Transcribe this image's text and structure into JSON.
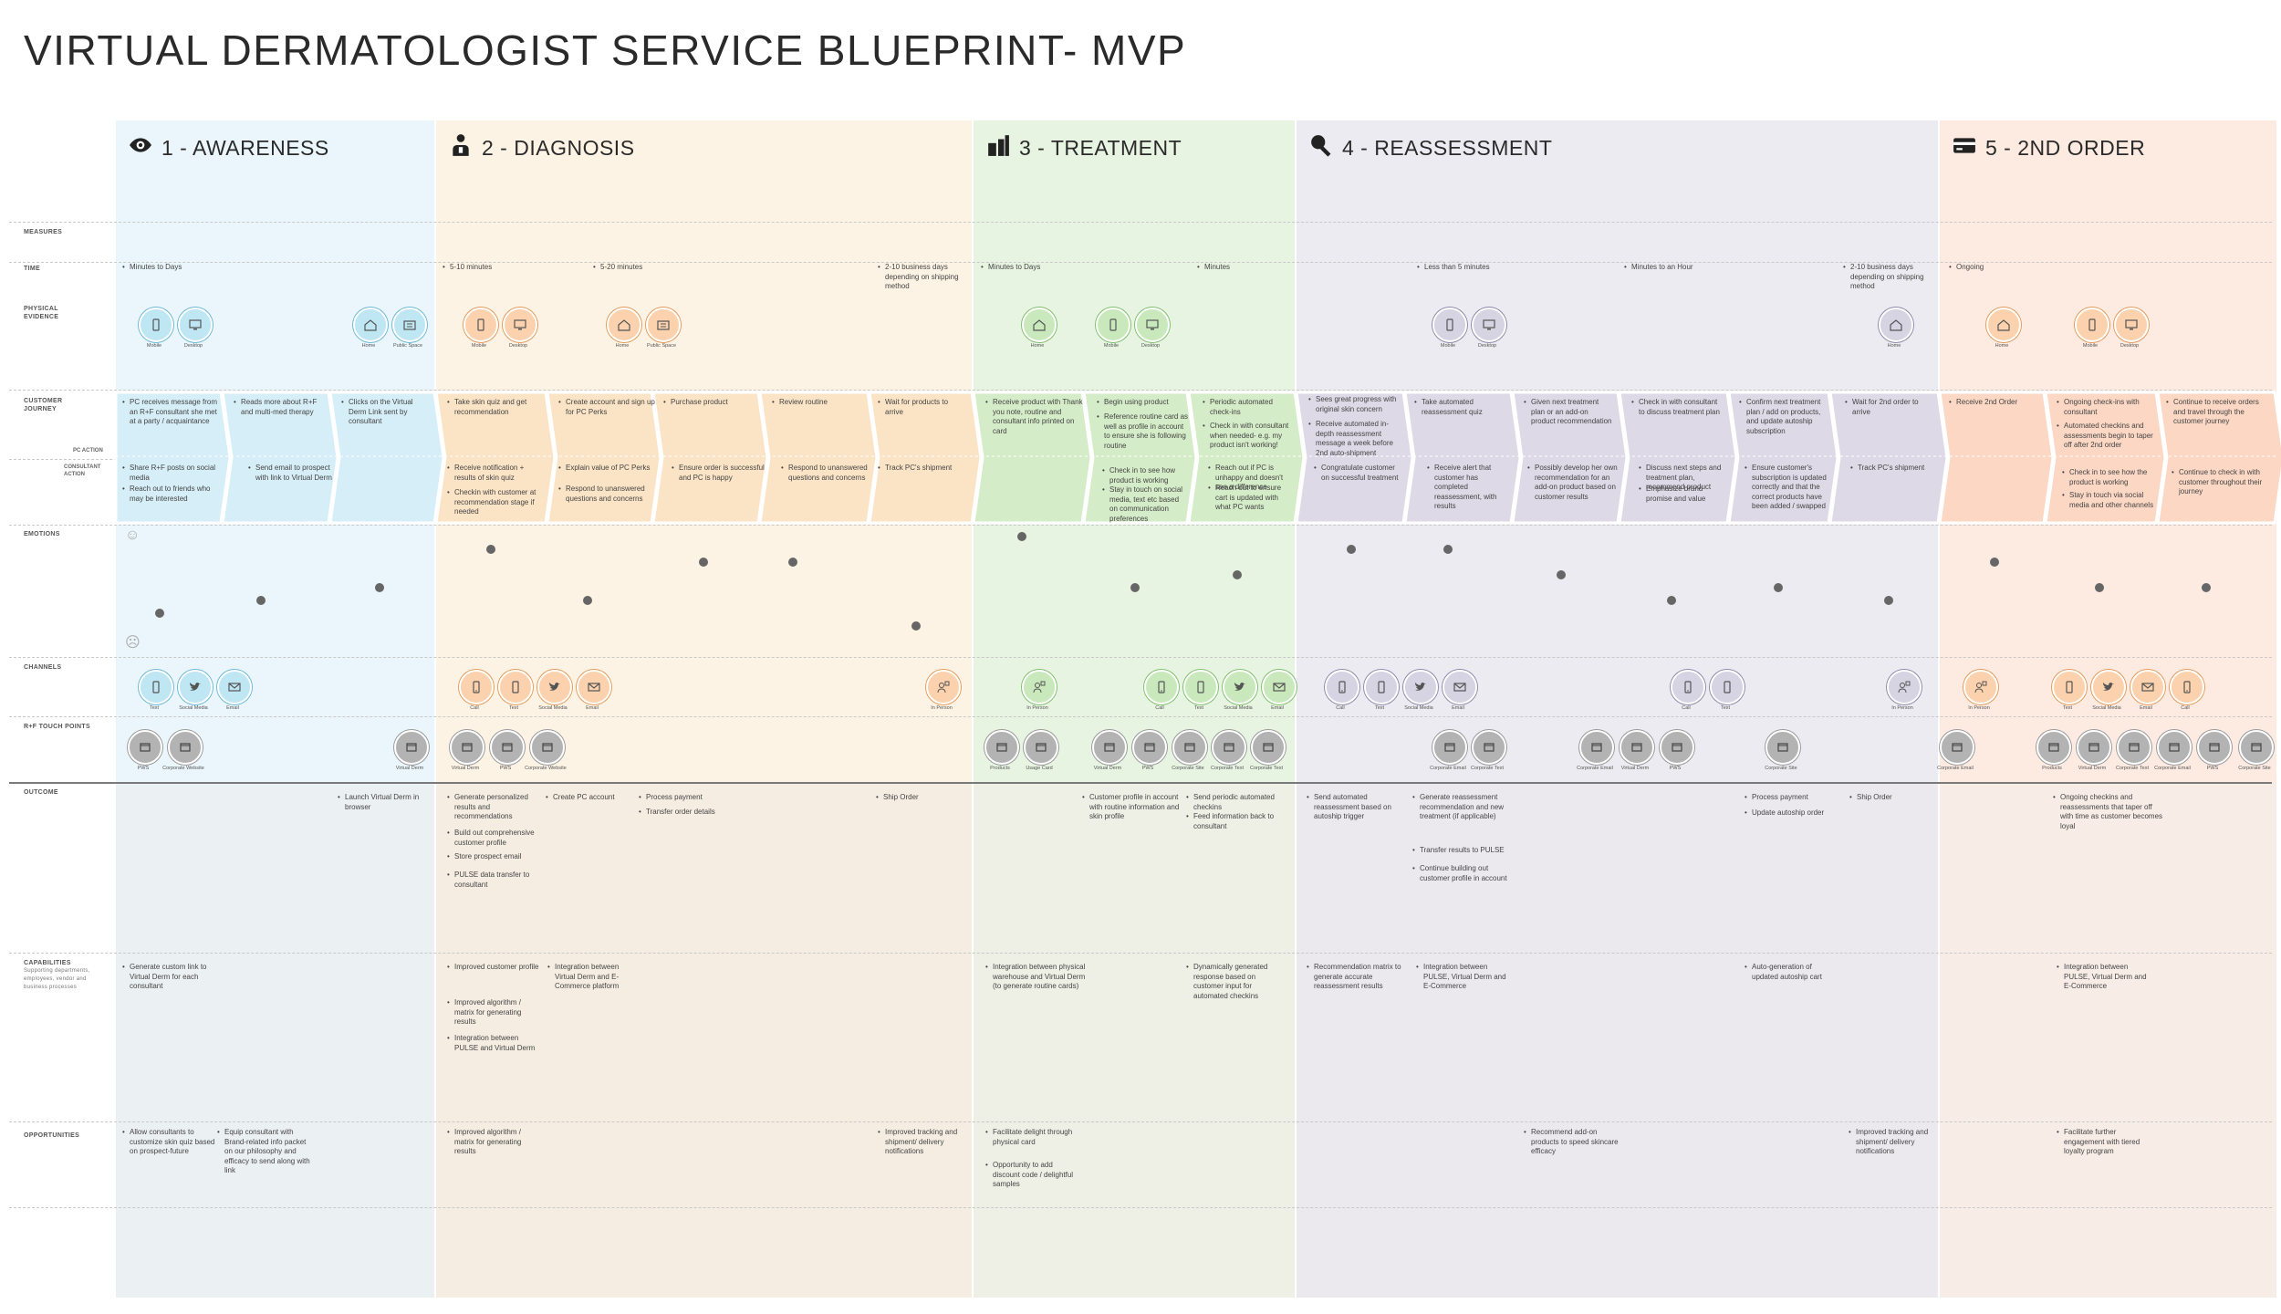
{
  "title": "VIRTUAL DERMATOLOGIST SERVICE BLUEPRINT- MVP",
  "colors": {
    "awareness": "#eaf6fb",
    "diagnosis": "#fdf3e4",
    "treatment": "#e8f4e2",
    "reassessment": "#ecebf1",
    "second_order": "#fdebe2"
  },
  "phases": [
    {
      "label": "1 - AWARENESS",
      "icon": "eye-icon"
    },
    {
      "label": "2 - DIAGNOSIS",
      "icon": "person-icon"
    },
    {
      "label": "3 - TREATMENT",
      "icon": "product-icon"
    },
    {
      "label": "4 - REASSESSMENT",
      "icon": "magnifier-icon"
    },
    {
      "label": "5 - 2ND ORDER",
      "icon": "card-icon"
    }
  ],
  "rows": {
    "measures": "MEASURES",
    "time": "TIME",
    "physical": "PHYSICAL EVIDENCE",
    "journey": "CUSTOMER JOURNEY",
    "pc_action": "PC ACTION",
    "consultant_action": "CONSULTANT ACTION",
    "emotions": "EMOTIONS",
    "channels": "CHANNELS",
    "touch": "R+F TOUCH POINTS",
    "outcome": "OUTCOME",
    "capabilities": "CAPABILITIES",
    "capabilities_sub": "Supporting departments, employees, vendor and business processes",
    "opportunities": "OPPORTUNITIES"
  },
  "times": [
    "Minutes to Days",
    "5-10 minutes",
    "5-20 minutes",
    "2-10 business days depending on shipping method",
    "Minutes to Days",
    "Minutes",
    "Less than 5 minutes",
    "Minutes to an Hour",
    "2-10 business days depending on shipping method",
    "Ongoing"
  ],
  "physical_labels": [
    "Mobile",
    "Desktop",
    "Home",
    "Public Space",
    "Mobile",
    "Desktop",
    "Home",
    "Public Space",
    "Home",
    "Mobile",
    "Desktop",
    "Mobile",
    "Desktop",
    "Home",
    "Home",
    "Mobile",
    "Desktop"
  ],
  "journey_pc": [
    "PC receives message from an R+F consultant she met at a party / acquaintance",
    "Reads more about R+F and multi-med therapy",
    "Clicks on the Virtual Derm Link sent by consultant",
    "Take skin quiz and get recommendation",
    "Create account and sign up for PC Perks",
    "Purchase product",
    "Review routine",
    "Wait for products to arrive",
    "Receive product with Thank you note, routine and consultant info printed on card",
    "Begin using product",
    "Reference routine card as well as profile in account to ensure she is following routine",
    "Periodic automated check-ins",
    "Check in with consultant when needed- e.g. my product isn't working!",
    "Sees great progress with original skin concern",
    "Receive automated in-depth reassessment message a week before 2nd auto-shipment",
    "Take automated reassessment quiz",
    "Given next treatment plan or an add-on product recommendation",
    "Check in with consultant to discuss treatment plan",
    "Confirm next treatment plan / add on products, and update autoship subscription",
    "Wait for 2nd order to arrive",
    "Receive 2nd Order",
    "Ongoing check-ins with consultant",
    "Automated checkins and assessments begin to taper off after 2nd order",
    "Continue to receive orders and travel through the customer journey"
  ],
  "journey_consultant": [
    "Share R+F posts on social media",
    "Reach out to friends who may be interested",
    "Send email to prospect with link to Virtual Derm",
    "Receive notification + results of skin quiz",
    "Checkin with customer at recommendation stage if needed",
    "Explain value of PC Perks",
    "Respond to unanswered questions and concerns",
    "Ensure order is successful and PC is happy",
    "Respond to unanswered questions and concerns",
    "Track PC's shipment",
    "Check in to see how product is working",
    "Stay in touch on social media, text etc based on communication preferences",
    "Reach out if PC is unhappy and doesn't see a difference",
    "Reach out to ensure cart is updated with what PC wants",
    "Congratulate customer on successful treatment",
    "Receive alert that customer has completed reassessment, with results",
    "Possibly develop her own recommendation for an add-on product based on customer results",
    "Discuss next steps and treatment plan, recommend product",
    "Emphasize brand promise and value",
    "Ensure customer's subscription is updated correctly and that the correct products have been added / swapped",
    "Track PC's shipment",
    "Check in to see how the product is working",
    "Stay in touch via social media and other channels",
    "Continue to check in with customer throughout their journey"
  ],
  "emotion_values": [
    2,
    3,
    6,
    7,
    3,
    5,
    5,
    1,
    8,
    6,
    3,
    7,
    7,
    5,
    3,
    4,
    3,
    6,
    5
  ],
  "channel_labels": [
    "Text",
    "Social Media",
    "Email",
    "Call",
    "Text",
    "Social Media",
    "Email",
    "In Person",
    "In Person",
    "Call",
    "Text",
    "Social Media",
    "Email",
    "Call",
    "Text",
    "Social Media",
    "Email",
    "Call",
    "Text",
    "In Person",
    "In Person",
    "Text",
    "Social Media",
    "Email",
    "Call"
  ],
  "touch_labels": [
    "PWS",
    "Corporate Website",
    "Virtual Derm",
    "Virtual Derm",
    "PWS",
    "Corporate Website",
    "Products",
    "Usage Card",
    "Virtual Derm",
    "PWS",
    "Corporate Site",
    "Corporate Text",
    "Corporate Text",
    "Corporate Email",
    "Corporate Text",
    "Corporate Email",
    "Virtual Derm",
    "PWS",
    "Corporate Site",
    "Corporate Email",
    "Products",
    "Virtual Derm",
    "Corporate Text",
    "Corporate Email",
    "PWS",
    "Corporate Site"
  ],
  "outcome": [
    "Launch Virtual Derm in browser",
    "Generate personalized results and recommendations",
    "Build out comprehensive customer profile",
    "Store prospect email",
    "PULSE data transfer to consultant",
    "Create PC account",
    "Process payment",
    "Transfer order details",
    "Ship Order",
    "Customer profile in account with routine information and skin profile",
    "Send periodic automated checkins",
    "Feed information back to consultant",
    "Send automated reassessment based on autoship trigger",
    "Generate reassessment recommendation and new treatment (if applicable)",
    "Transfer results to PULSE",
    "Continue building out customer profile in account",
    "Process payment",
    "Update autoship order",
    "Ship Order",
    "Ongoing checkins and reassessments that taper off with time as customer becomes loyal"
  ],
  "capabilities": [
    "Generate custom link to Virtual Derm for each consultant",
    "Improved customer profile",
    "Improved algorithm / matrix for generating results",
    "Integration between PULSE and Virtual Derm",
    "Integration between Virtual Derm and E-Commerce platform",
    "Integration between physical warehouse and Virtual Derm (to generate routine cards)",
    "Dynamically generated response based on customer input for automated checkins",
    "Recommendation matrix to generate accurate reassessment results",
    "Integration between PULSE, Virtual Derm and E-Commerce",
    "Auto-generation of updated autoship cart",
    "Integration between PULSE, Virtual Derm and E-Commerce"
  ],
  "opportunities": [
    "Allow consultants to customize skin quiz based on prospect-future",
    "Equip consultant with Brand-related info packet on our philosophy and efficacy to send along with link",
    "Improved algorithm / matrix for generating results",
    "Improved tracking and shipment/ delivery notifications",
    "Facilitate delight through physical card",
    "Opportunity to add discount code / delightful samples",
    "Recommend add-on products to speed skincare efficacy",
    "Improved tracking and shipment/ delivery notifications",
    "Facilitate further engagement with tiered loyalty program"
  ]
}
